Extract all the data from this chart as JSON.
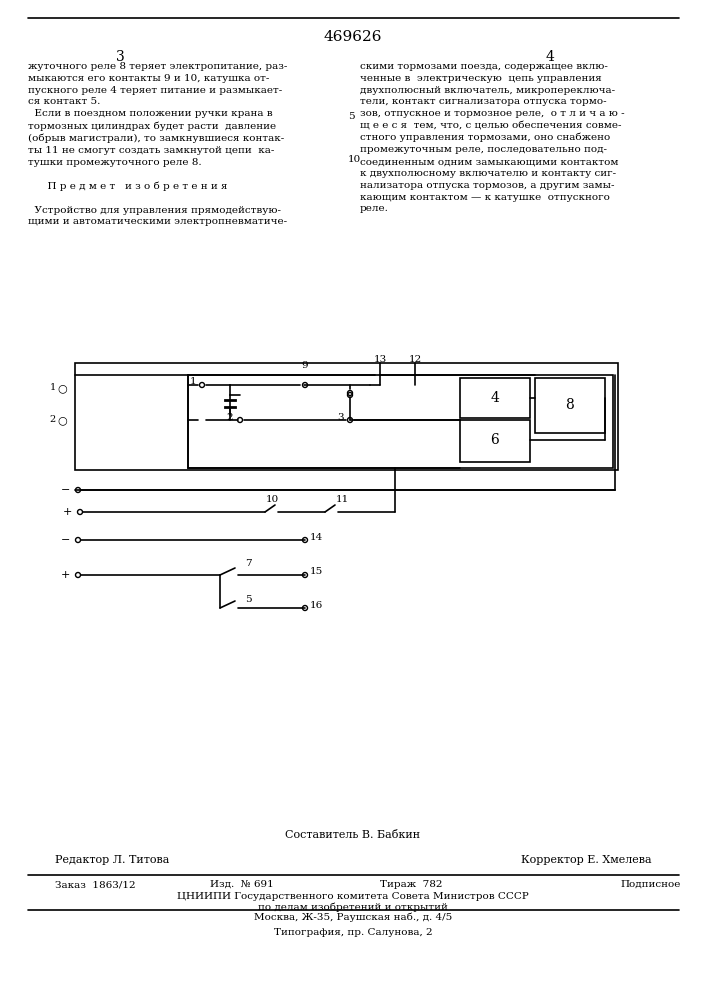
{
  "patent_number": "469626",
  "page_left": "3",
  "page_right": "4",
  "text_left": "жуточного реле 8 теряет электропитание, раз-\nмыкаются его контакты 9 и 10, катушка от-\nпускного реле 4 теряет питание и размыкает-\nся контакт 5.\n  Если в поездном положении ручки крана в\nтормозных цилиндрах будет расти  давление\n(обрыв магистрали), то замкнувшиеся контак-\nты 11 не смогут создать замкнутой цепи  ка-\nтушки промежуточного реле 8.\n\n      П р е д м е т   и з о б р е т е н и я\n\n  Устройство для управления прямодействую-\nщими и автоматическими электропневматиче-",
  "text_right": "скими тормозами поезда, содержащее вклю-\nченные в  электрическую  цепь управления\nдвухполюсный включатель, микропереключа-\nтели, контакт сигнализатора отпуска тормо-\nзов, отпускное и тормозное реле,  о т л и ч а ю -\nщ е е с я  тем, что, с целью обеспечения совме-\nстного управления тормозами, оно снабжено\nпромежуточным реле, последовательно под-\nсоединенным одним замыкающими контактом\nк двухполюсному включателю и контакту сиг-\nнализатора отпуска тормозов, а другим замы-\nкающим контактом — к катушке  отпускного\nреле.",
  "line_numbers_right": [
    "5",
    "10"
  ],
  "compositor": "Составитель В. Бабкин",
  "editor": "Редактор Л. Титова",
  "corrector": "Корректор Е. Хмелева",
  "order": "Заказ  1863/12",
  "edition": "Изд.  № 691",
  "print_run": "Тираж  782",
  "subscription": "Подписное",
  "organization": "ЦНИИПИ Государственного комитета Совета Министров СССР",
  "org_line2": "по делам изобретений и открытий",
  "address": "Москва, Ж-35, Раушская наб., д. 4/5",
  "typography": "Типография, пр. Салунова, 2"
}
